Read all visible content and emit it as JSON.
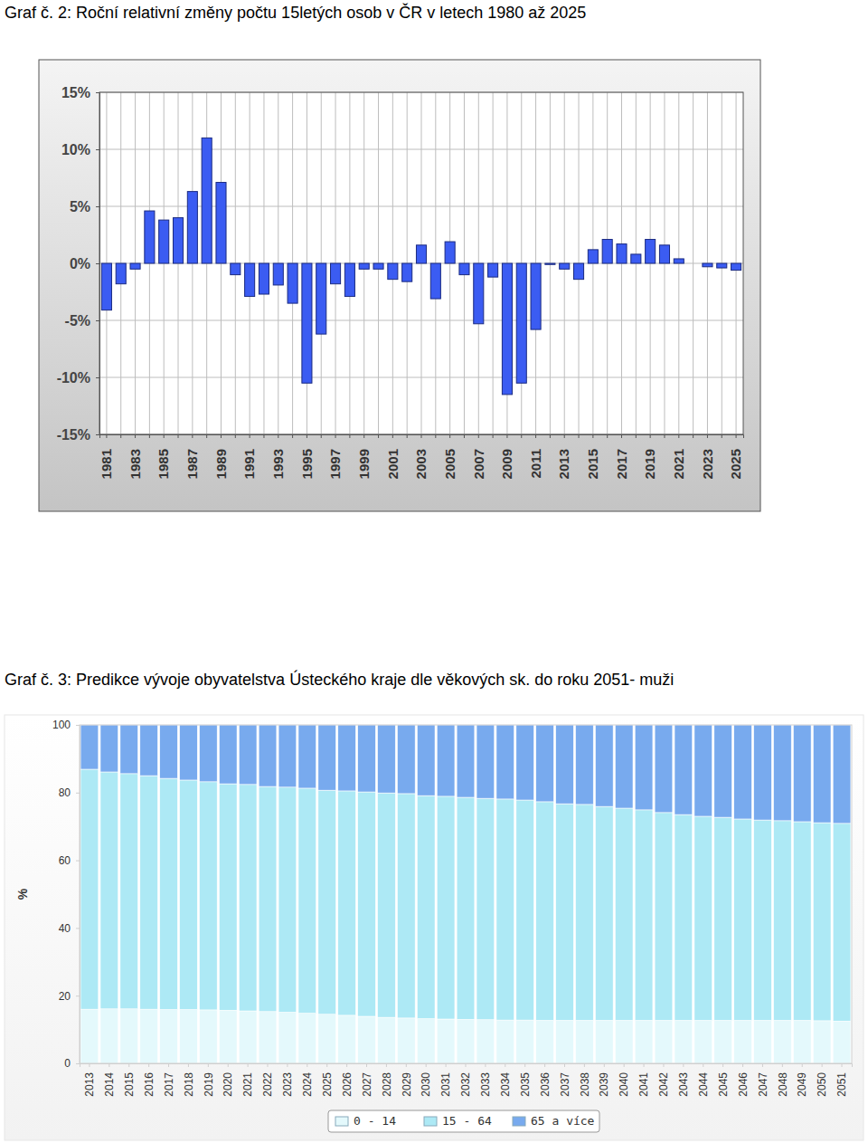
{
  "chart_data": [
    {
      "type": "bar",
      "title": "Graf č. 2: Roční relativní změny počtu 15letých osob v ČR v letech 1980 až 2025",
      "categories": [
        "1981",
        null,
        "1983",
        null,
        "1985",
        null,
        "1987",
        null,
        "1989",
        null,
        "1991",
        null,
        "1993",
        null,
        "1995",
        null,
        "1997",
        null,
        "1999",
        null,
        "2001",
        null,
        "2003",
        null,
        "2005",
        null,
        "2007",
        null,
        "2009",
        null,
        "2011",
        null,
        "2013",
        null,
        "2015",
        null,
        "2017",
        null,
        "2019",
        null,
        "2021",
        null,
        "2023",
        null,
        "2025"
      ],
      "values": [
        -4.1,
        -1.8,
        -0.5,
        4.6,
        3.8,
        4.0,
        6.3,
        11.0,
        7.1,
        -1.0,
        -2.9,
        -2.7,
        -1.9,
        -3.5,
        -10.5,
        -6.2,
        -1.8,
        -2.9,
        -0.5,
        -0.5,
        -1.4,
        -1.6,
        1.6,
        -3.1,
        1.9,
        -1.0,
        -5.3,
        -1.2,
        -11.5,
        -10.5,
        -5.8,
        -0.1,
        -0.5,
        -1.4,
        1.2,
        2.1,
        1.7,
        0.8,
        2.1,
        1.6,
        0.4,
        0,
        -0.3,
        -0.4,
        -0.6
      ],
      "color": "#3b5cf2",
      "ylim": [
        -15,
        15
      ],
      "yticks": [
        {
          "value": -15,
          "label": "-15%"
        },
        {
          "value": -10,
          "label": "-10%"
        },
        {
          "value": -5,
          "label": "-5%"
        },
        {
          "value": 0,
          "label": "0%"
        },
        {
          "value": 5,
          "label": "5%"
        },
        {
          "value": 10,
          "label": "10%"
        },
        {
          "value": 15,
          "label": "15%"
        }
      ],
      "grid": true
    },
    {
      "type": "bar",
      "stacked": true,
      "title": "Graf č. 3: Predikce vývoje obyvatelstva Ústeckého kraje dle věkových sk. do roku 2051- muži",
      "y_label": "%",
      "categories": [
        "2013",
        "2014",
        "2015",
        "2016",
        "2017",
        "2018",
        "2019",
        "2020",
        "2021",
        "2022",
        "2023",
        "2024",
        "2025",
        "2026",
        "2027",
        "2028",
        "2029",
        "2030",
        "2031",
        "2032",
        "2033",
        "2034",
        "2035",
        "2036",
        "2037",
        "2038",
        "2039",
        "2040",
        "2041",
        "2042",
        "2043",
        "2044",
        "2045",
        "2046",
        "2047",
        "2048",
        "2049",
        "2050",
        "2051"
      ],
      "series": [
        {
          "name": "0 - 14",
          "color": "#e4f9fc",
          "values": [
            16.0,
            16.1,
            16.1,
            16.0,
            15.9,
            15.9,
            15.8,
            15.7,
            15.5,
            15.3,
            15.1,
            14.8,
            14.5,
            14.2,
            13.9,
            13.6,
            13.4,
            13.2,
            13.1,
            13.0,
            12.9,
            12.8,
            12.8,
            12.7,
            12.7,
            12.7,
            12.7,
            12.7,
            12.7,
            12.7,
            12.7,
            12.7,
            12.7,
            12.7,
            12.7,
            12.7,
            12.7,
            12.6,
            12.5
          ]
        },
        {
          "name": "15 - 64",
          "color": "#ade9f5",
          "values": [
            70.9,
            70.0,
            69.5,
            69.0,
            68.3,
            67.8,
            67.4,
            66.9,
            66.9,
            66.5,
            66.5,
            66.5,
            66.2,
            66.3,
            66.3,
            66.3,
            66.3,
            65.9,
            65.8,
            65.6,
            65.4,
            65.3,
            65.0,
            64.6,
            64.0,
            63.8,
            63.2,
            62.7,
            62.2,
            61.4,
            60.8,
            60.3,
            60.0,
            59.5,
            59.2,
            59.0,
            58.7,
            58.5,
            58.4
          ]
        },
        {
          "name": "65 a více",
          "color": "#78aaee",
          "values": [
            13.1,
            13.9,
            14.4,
            15.0,
            15.8,
            16.3,
            16.8,
            17.4,
            17.6,
            18.2,
            18.4,
            18.7,
            19.3,
            19.5,
            19.8,
            20.1,
            20.3,
            20.9,
            21.1,
            21.4,
            21.7,
            21.9,
            22.2,
            22.7,
            23.3,
            23.5,
            24.1,
            24.6,
            25.1,
            25.9,
            26.5,
            27.0,
            27.3,
            27.8,
            28.1,
            28.3,
            28.6,
            28.9,
            29.1
          ]
        }
      ],
      "ylim": [
        0,
        100
      ],
      "yticks": [
        0,
        20,
        40,
        60,
        80,
        100
      ],
      "legend": "bottom"
    }
  ]
}
